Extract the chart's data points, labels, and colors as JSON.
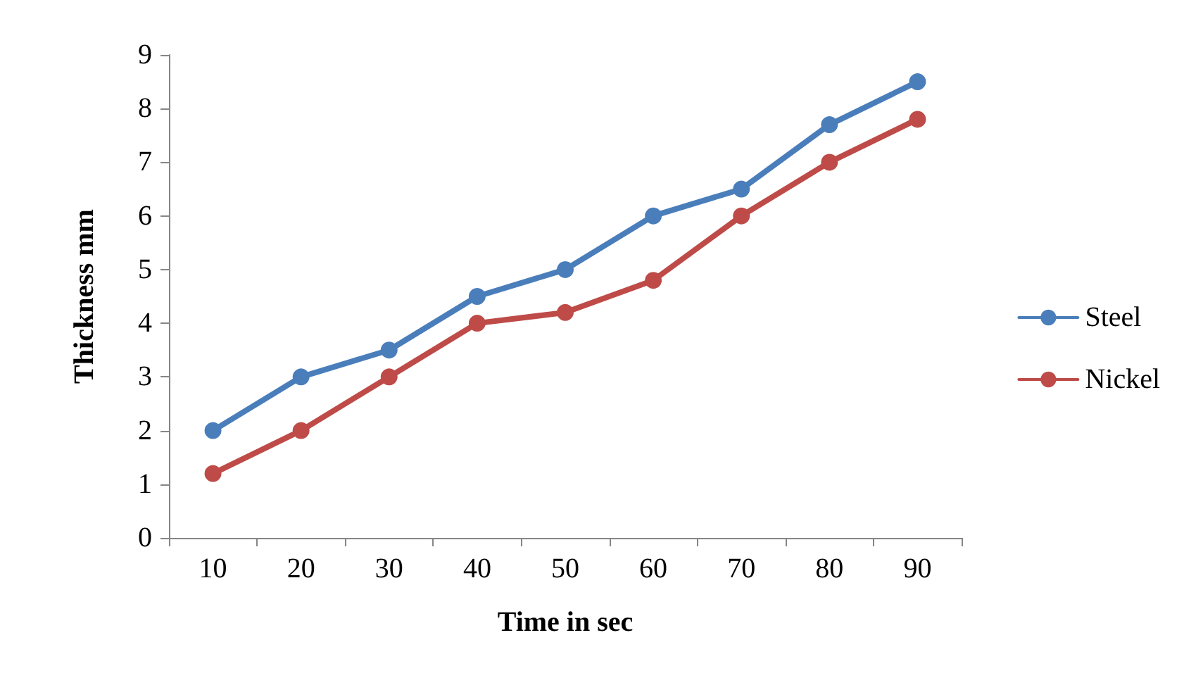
{
  "chart_data": {
    "type": "line",
    "xlabel": "Time in sec",
    "ylabel": "Thickness mm",
    "categories": [
      "10",
      "20",
      "30",
      "40",
      "50",
      "60",
      "70",
      "80",
      "90"
    ],
    "series": [
      {
        "name": "Steel",
        "color": "#4a7ebb",
        "values": [
          2,
          3,
          3.5,
          4.5,
          5,
          6,
          6.5,
          7.7,
          8.5
        ]
      },
      {
        "name": "Nickel",
        "color": "#be4b48",
        "values": [
          1.2,
          2,
          3,
          4,
          4.2,
          4.8,
          6,
          7,
          7.8
        ]
      }
    ],
    "ylim": [
      0,
      9
    ],
    "yticks": [
      0,
      1,
      2,
      3,
      4,
      5,
      6,
      7,
      8,
      9
    ],
    "grid": false,
    "legend": "right",
    "marker": "circle",
    "line_style": "solid"
  }
}
